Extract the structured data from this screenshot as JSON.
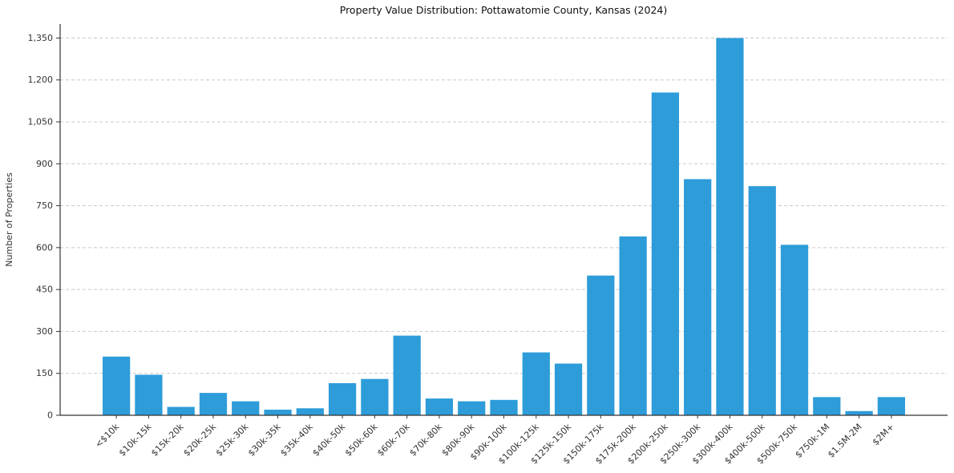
{
  "chart_data": {
    "type": "bar",
    "title": "Property Value Distribution: Pottawatomie County, Kansas (2024)",
    "xlabel": "",
    "ylabel": "Number of Properties",
    "categories": [
      "<$10k",
      "$10k-15k",
      "$15k-20k",
      "$20k-25k",
      "$25k-30k",
      "$30k-35k",
      "$35k-40k",
      "$40k-50k",
      "$50k-60k",
      "$60k-70k",
      "$70k-80k",
      "$80k-90k",
      "$90k-100k",
      "$100k-125k",
      "$125k-150k",
      "$150k-175k",
      "$175k-200k",
      "$200k-250k",
      "$250k-300k",
      "$300k-400k",
      "$400k-500k",
      "$500k-750k",
      "$750k-1M",
      "$1.5M-2M",
      "$2M+"
    ],
    "values": [
      210,
      145,
      30,
      80,
      50,
      20,
      25,
      115,
      130,
      285,
      60,
      50,
      55,
      225,
      185,
      500,
      640,
      1155,
      845,
      1350,
      820,
      610,
      65,
      15,
      65
    ],
    "yticks": [
      0,
      150,
      300,
      450,
      600,
      750,
      900,
      1050,
      1200,
      1350
    ],
    "ylim": [
      0,
      1400
    ],
    "grid": "horizontal-dashed",
    "legend": "none",
    "colors": {
      "bar": "#2D9CD9",
      "grid": "#c9c9c9",
      "axis": "#333333",
      "text": "#333333",
      "background": "#ffffff"
    }
  }
}
